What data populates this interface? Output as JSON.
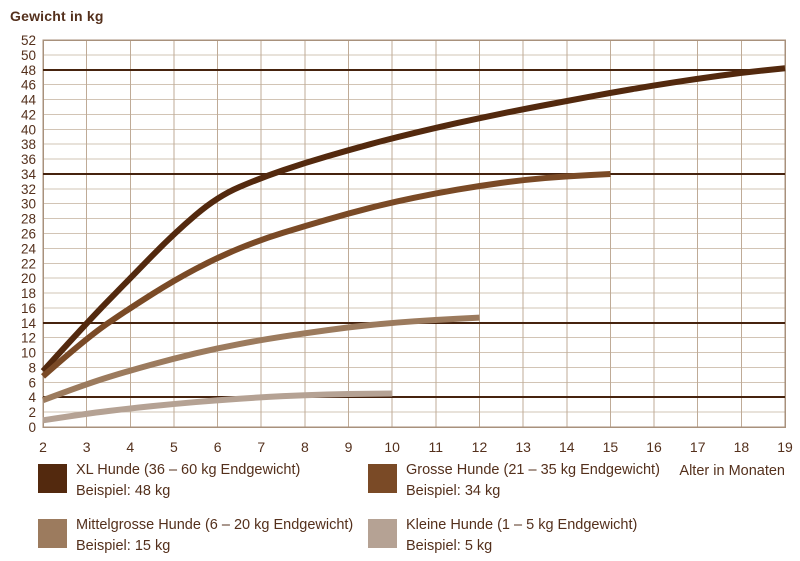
{
  "title": "Gewicht in kg",
  "x_axis_title": "Alter in Monaten",
  "colors": {
    "text": "#54301c",
    "grid_h": "#d2c4b5",
    "grid_v": "#bfab97",
    "border": "#a8917c",
    "reference_line": "#46230e",
    "background": "#ffffff"
  },
  "chart_data": {
    "type": "line",
    "title": "Gewicht in kg",
    "ylabel": "Gewicht in kg",
    "xlabel": "Alter in Monaten",
    "xlim": [
      2,
      19
    ],
    "ylim": [
      0,
      52
    ],
    "x_ticks": [
      2,
      3,
      4,
      5,
      6,
      7,
      8,
      9,
      10,
      11,
      12,
      13,
      14,
      15,
      16,
      17,
      18,
      19
    ],
    "y_ticks": [
      0,
      2,
      4,
      6,
      8,
      10,
      12,
      14,
      16,
      18,
      20,
      22,
      24,
      26,
      28,
      30,
      32,
      34,
      36,
      38,
      40,
      42,
      44,
      46,
      48,
      50,
      52
    ],
    "grid": true,
    "legend_position": "bottom",
    "reference_lines": [
      48,
      34,
      14,
      4
    ],
    "series": [
      {
        "name": "xl-hunde",
        "label": "XL Hunde (36 – 60 kg Endgewicht)",
        "example": "Beispiel: 48 kg",
        "color": "#53290e",
        "points": [
          [
            2,
            7.5
          ],
          [
            3,
            14
          ],
          [
            4,
            20
          ],
          [
            5,
            26
          ],
          [
            6,
            31
          ],
          [
            7,
            33.5
          ],
          [
            8,
            35.5
          ],
          [
            9,
            37.2
          ],
          [
            10,
            38.8
          ],
          [
            11,
            40.2
          ],
          [
            12,
            41.5
          ],
          [
            13,
            42.7
          ],
          [
            14,
            43.8
          ],
          [
            15,
            44.9
          ],
          [
            16,
            45.9
          ],
          [
            17,
            46.8
          ],
          [
            18,
            47.6
          ],
          [
            19,
            48.2
          ]
        ]
      },
      {
        "name": "grosse-hunde",
        "label": "Grosse Hunde (21 – 35 kg Endgewicht)",
        "example": "Beispiel: 34 kg",
        "color": "#7a4a26",
        "points": [
          [
            2,
            6.8
          ],
          [
            3,
            12
          ],
          [
            4,
            16
          ],
          [
            5,
            19.7
          ],
          [
            6,
            22.8
          ],
          [
            7,
            25.2
          ],
          [
            8,
            27
          ],
          [
            9,
            28.7
          ],
          [
            10,
            30.2
          ],
          [
            11,
            31.4
          ],
          [
            12,
            32.4
          ],
          [
            13,
            33.2
          ],
          [
            14,
            33.7
          ],
          [
            15,
            34
          ]
        ]
      },
      {
        "name": "mittelgrosse-hunde",
        "label": "Mittelgrosse Hunde (6 – 20 kg Endgewicht)",
        "example": "Beispiel: 15 kg",
        "color": "#9c7b5e",
        "points": [
          [
            2,
            3.6
          ],
          [
            3,
            5.8
          ],
          [
            4,
            7.6
          ],
          [
            5,
            9.2
          ],
          [
            6,
            10.6
          ],
          [
            7,
            11.7
          ],
          [
            8,
            12.6
          ],
          [
            9,
            13.4
          ],
          [
            10,
            14
          ],
          [
            11,
            14.4
          ],
          [
            12,
            14.7
          ]
        ]
      },
      {
        "name": "kleine-hunde",
        "label": "Kleine Hunde (1 – 5 kg Endgewicht)",
        "example": "Beispiel: 5 kg",
        "color": "#b5a294",
        "points": [
          [
            2,
            0.9
          ],
          [
            3,
            1.8
          ],
          [
            4,
            2.5
          ],
          [
            5,
            3.1
          ],
          [
            6,
            3.6
          ],
          [
            7,
            4.0
          ],
          [
            8,
            4.3
          ],
          [
            9,
            4.45
          ],
          [
            10,
            4.5
          ]
        ]
      }
    ]
  },
  "legend": {
    "items": [
      {
        "label": "XL Hunde (36 – 60 kg Endgewicht)",
        "example": "Beispiel: 48 kg",
        "color": "#53290e"
      },
      {
        "label": "Grosse Hunde (21 – 35 kg Endgewicht)",
        "example": "Beispiel: 34 kg",
        "color": "#7a4a26"
      },
      {
        "label": "Mittelgrosse Hunde (6 – 20 kg Endgewicht)",
        "example": "Beispiel: 15 kg",
        "color": "#9c7b5e"
      },
      {
        "label": "Kleine Hunde (1 – 5 kg Endgewicht)",
        "example": "Beispiel: 5 kg",
        "color": "#b5a294"
      }
    ]
  }
}
